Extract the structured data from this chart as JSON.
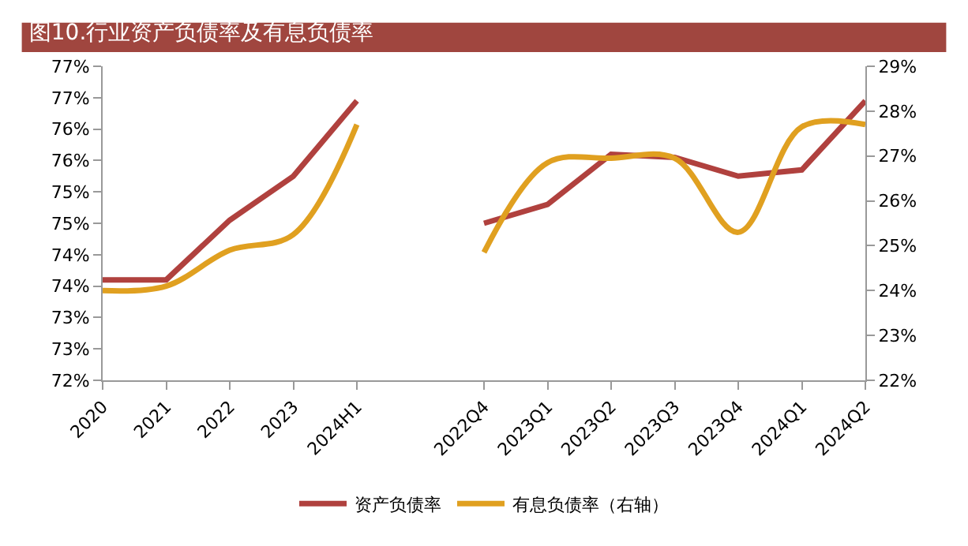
{
  "chart_data": {
    "type": "line",
    "title": "图10.行业资产负债率及有息负债率",
    "categories": [
      "2020",
      "2021",
      "2022",
      "2023",
      "2024H1",
      null,
      "2022Q4",
      "2023Q1",
      "2023Q2",
      "2023Q3",
      "2023Q4",
      "2024Q1",
      "2024Q2"
    ],
    "series": [
      {
        "name": "资产负债率",
        "color": "#b0413e",
        "values": [
          73.6,
          73.6,
          74.55,
          75.25,
          76.45,
          null,
          74.5,
          74.8,
          75.6,
          75.55,
          75.25,
          75.35,
          76.45
        ]
      },
      {
        "name": "有息负债率（右轴）",
        "color": "#e0a020",
        "axis": "y2",
        "values": [
          24.0,
          24.1,
          24.9,
          25.25,
          27.7,
          null,
          24.85,
          26.85,
          26.95,
          26.95,
          25.3,
          27.65,
          27.7
        ]
      }
    ],
    "ylim": [
      72,
      77
    ],
    "yticks": [
      {
        "value": 72,
        "label": "72%"
      },
      {
        "value": 72.5,
        "label": "73%"
      },
      {
        "value": 73,
        "label": "73%"
      },
      {
        "value": 73.5,
        "label": "74%"
      },
      {
        "value": 74,
        "label": "74%"
      },
      {
        "value": 74.5,
        "label": "75%"
      },
      {
        "value": 75,
        "label": "75%"
      },
      {
        "value": 75.5,
        "label": "76%"
      },
      {
        "value": 76,
        "label": "76%"
      },
      {
        "value": 76.5,
        "label": "77%"
      },
      {
        "value": 77,
        "label": "77%"
      }
    ],
    "y2lim": [
      22,
      29
    ],
    "y2ticks": [
      {
        "value": 22,
        "label": "22%"
      },
      {
        "value": 23,
        "label": "23%"
      },
      {
        "value": 24,
        "label": "24%"
      },
      {
        "value": 25,
        "label": "25%"
      },
      {
        "value": 26,
        "label": "26%"
      },
      {
        "value": 27,
        "label": "27%"
      },
      {
        "value": 28,
        "label": "28%"
      },
      {
        "value": 29,
        "label": "29%"
      }
    ],
    "legend": "bottom",
    "marker": "none",
    "line_style": "solid"
  }
}
